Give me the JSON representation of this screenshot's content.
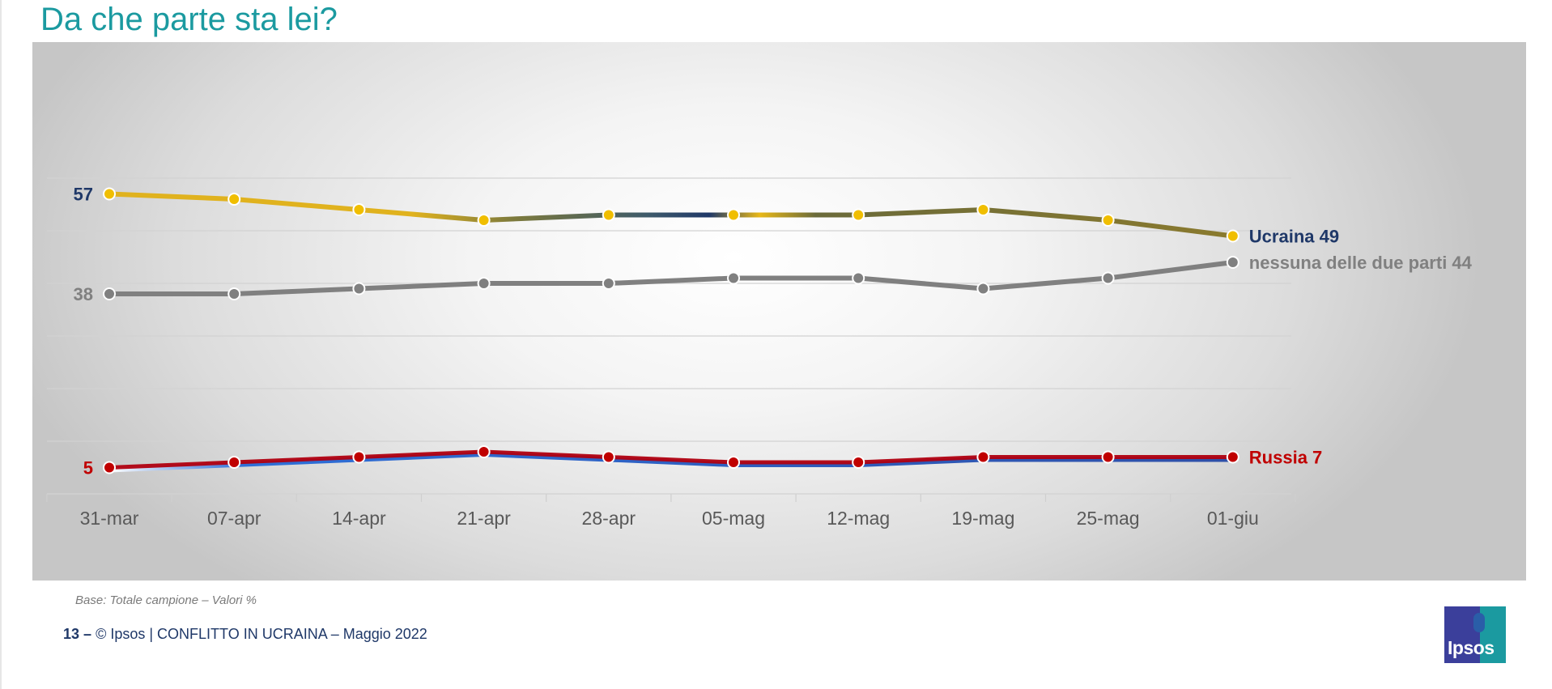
{
  "title": "Da che parte sta lei?",
  "note": "Base: Totale campione – Valori %",
  "footer": {
    "page": "13 –",
    "text": "© Ipsos | CONFLITTO IN UCRAINA – Maggio 2022"
  },
  "logo": {
    "text": "Ipsos"
  },
  "chart_data": {
    "type": "line",
    "title": "Da che parte sta lei?",
    "x": [
      "31-mar",
      "07-apr",
      "14-apr",
      "21-apr",
      "28-apr",
      "05-mag",
      "12-mag",
      "19-mag",
      "25-mag",
      "01-giu"
    ],
    "ylim": [
      0,
      60
    ],
    "grid": true,
    "series": [
      {
        "name": "Ucraina",
        "values": [
          57,
          56,
          54,
          52,
          53,
          53,
          53,
          54,
          52,
          49
        ],
        "start_label": "57",
        "end_label": "Ucraina 49",
        "color": "#f0be00",
        "line_color": "#8a7a2e",
        "label_color": "#1f3868"
      },
      {
        "name": "nessuna delle due parti",
        "values": [
          38,
          38,
          39,
          40,
          40,
          41,
          41,
          39,
          41,
          44
        ],
        "start_label": "38",
        "end_label": "nessuna delle due parti  44",
        "color": "#808080",
        "line_color": "#808080",
        "label_color": "#808080"
      },
      {
        "name": "Russia",
        "values": [
          5,
          6,
          7,
          8,
          7,
          6,
          6,
          7,
          7,
          7
        ],
        "start_label": "5",
        "end_label": "Russia 7",
        "color": "#c00000",
        "line_color": "#b00010",
        "label_color": "#c00000"
      }
    ]
  }
}
